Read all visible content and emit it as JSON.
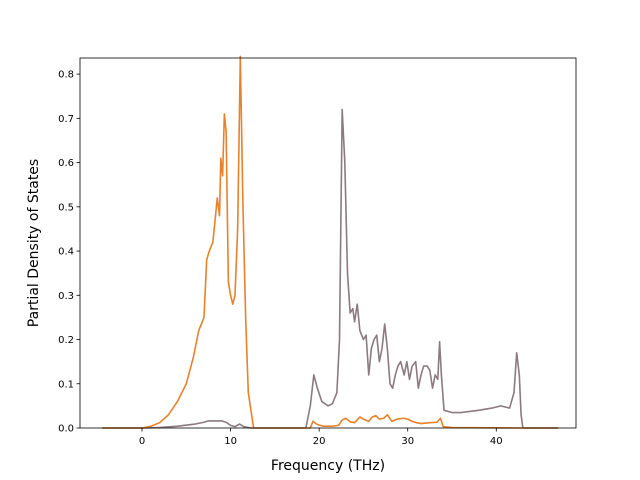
{
  "chart_data": {
    "type": "line",
    "title": "",
    "xlabel": "Frequency (THz)",
    "ylabel": "Partial Density of States",
    "xlim": [
      -7,
      49
    ],
    "ylim": [
      0,
      0.8
    ],
    "xticks": [
      0,
      10,
      20,
      30,
      40
    ],
    "yticks": [
      0.0,
      0.1,
      0.2,
      0.3,
      0.4,
      0.5,
      0.6,
      0.7,
      0.8
    ],
    "ytick_labels": [
      "0.0",
      "0.1",
      "0.2",
      "0.3",
      "0.4",
      "0.5",
      "0.6",
      "0.7",
      "0.8"
    ],
    "grid": false,
    "series": [
      {
        "color": "#8c7a80",
        "points": [
          [
            -4.5,
            0
          ],
          [
            0,
            0
          ],
          [
            2,
            0.001
          ],
          [
            4,
            0.004
          ],
          [
            6,
            0.009
          ],
          [
            7,
            0.013
          ],
          [
            7.5,
            0.016
          ],
          [
            9,
            0.016
          ],
          [
            9.5,
            0.013
          ],
          [
            10,
            0.006
          ],
          [
            10.5,
            0.003
          ],
          [
            11,
            0.009
          ],
          [
            11.5,
            0.003
          ],
          [
            12,
            0.001
          ],
          [
            12.3,
            0
          ],
          [
            18.5,
            0
          ],
          [
            19,
            0.05
          ],
          [
            19.4,
            0.12
          ],
          [
            19.8,
            0.09
          ],
          [
            20.3,
            0.06
          ],
          [
            21,
            0.05
          ],
          [
            21.5,
            0.055
          ],
          [
            22,
            0.08
          ],
          [
            22.3,
            0.2
          ],
          [
            22.6,
            0.72
          ],
          [
            22.9,
            0.6
          ],
          [
            23.2,
            0.35
          ],
          [
            23.5,
            0.26
          ],
          [
            23.8,
            0.27
          ],
          [
            24,
            0.24
          ],
          [
            24.3,
            0.28
          ],
          [
            24.6,
            0.22
          ],
          [
            25,
            0.2
          ],
          [
            25.3,
            0.21
          ],
          [
            25.6,
            0.12
          ],
          [
            25.9,
            0.18
          ],
          [
            26.2,
            0.2
          ],
          [
            26.5,
            0.21
          ],
          [
            26.8,
            0.15
          ],
          [
            27.1,
            0.18
          ],
          [
            27.4,
            0.235
          ],
          [
            27.7,
            0.18
          ],
          [
            28,
            0.1
          ],
          [
            28.3,
            0.09
          ],
          [
            28.6,
            0.12
          ],
          [
            28.9,
            0.14
          ],
          [
            29.2,
            0.15
          ],
          [
            29.6,
            0.12
          ],
          [
            29.9,
            0.15
          ],
          [
            30.2,
            0.11
          ],
          [
            30.5,
            0.14
          ],
          [
            30.9,
            0.15
          ],
          [
            31.2,
            0.09
          ],
          [
            31.5,
            0.12
          ],
          [
            31.8,
            0.14
          ],
          [
            32.2,
            0.14
          ],
          [
            32.5,
            0.13
          ],
          [
            32.8,
            0.09
          ],
          [
            33.1,
            0.12
          ],
          [
            33.4,
            0.11
          ],
          [
            33.6,
            0.195
          ],
          [
            33.8,
            0.12
          ],
          [
            34.1,
            0.04
          ],
          [
            35,
            0.035
          ],
          [
            36,
            0.035
          ],
          [
            38,
            0.04
          ],
          [
            39.5,
            0.045
          ],
          [
            40.5,
            0.05
          ],
          [
            41.5,
            0.045
          ],
          [
            42,
            0.08
          ],
          [
            42.3,
            0.17
          ],
          [
            42.6,
            0.12
          ],
          [
            42.8,
            0.03
          ],
          [
            43,
            0
          ],
          [
            47,
            0
          ]
        ]
      },
      {
        "color": "#e8822a",
        "points": [
          [
            -4.5,
            0
          ],
          [
            0,
            0
          ],
          [
            1,
            0.004
          ],
          [
            2,
            0.012
          ],
          [
            3,
            0.03
          ],
          [
            4,
            0.06
          ],
          [
            5,
            0.1
          ],
          [
            5.8,
            0.16
          ],
          [
            6.4,
            0.22
          ],
          [
            7,
            0.25
          ],
          [
            7.3,
            0.38
          ],
          [
            7.6,
            0.4
          ],
          [
            8,
            0.42
          ],
          [
            8.3,
            0.48
          ],
          [
            8.5,
            0.52
          ],
          [
            8.75,
            0.48
          ],
          [
            8.9,
            0.61
          ],
          [
            9.1,
            0.57
          ],
          [
            9.3,
            0.71
          ],
          [
            9.5,
            0.67
          ],
          [
            9.75,
            0.33
          ],
          [
            10,
            0.3
          ],
          [
            10.25,
            0.28
          ],
          [
            10.5,
            0.3
          ],
          [
            10.8,
            0.45
          ],
          [
            11.1,
            0.84
          ],
          [
            11.4,
            0.5
          ],
          [
            11.7,
            0.25
          ],
          [
            12,
            0.08
          ],
          [
            12.3,
            0.04
          ],
          [
            12.6,
            0
          ],
          [
            19,
            0
          ],
          [
            19.3,
            0.015
          ],
          [
            19.8,
            0.008
          ],
          [
            20.5,
            0.004
          ],
          [
            21.5,
            0.004
          ],
          [
            22.2,
            0.006
          ],
          [
            22.6,
            0.018
          ],
          [
            23,
            0.022
          ],
          [
            23.5,
            0.014
          ],
          [
            24,
            0.012
          ],
          [
            24.6,
            0.025
          ],
          [
            25,
            0.02
          ],
          [
            25.6,
            0.015
          ],
          [
            26,
            0.025
          ],
          [
            26.4,
            0.028
          ],
          [
            26.8,
            0.02
          ],
          [
            27.3,
            0.022
          ],
          [
            27.7,
            0.03
          ],
          [
            28.2,
            0.015
          ],
          [
            28.8,
            0.02
          ],
          [
            29.5,
            0.022
          ],
          [
            30,
            0.02
          ],
          [
            30.5,
            0.015
          ],
          [
            31,
            0.012
          ],
          [
            31.5,
            0.01
          ],
          [
            32.5,
            0.012
          ],
          [
            33.3,
            0.013
          ],
          [
            33.7,
            0.022
          ],
          [
            34,
            0.003
          ],
          [
            35,
            0.001
          ],
          [
            43,
            0
          ],
          [
            47,
            0
          ]
        ]
      }
    ]
  }
}
